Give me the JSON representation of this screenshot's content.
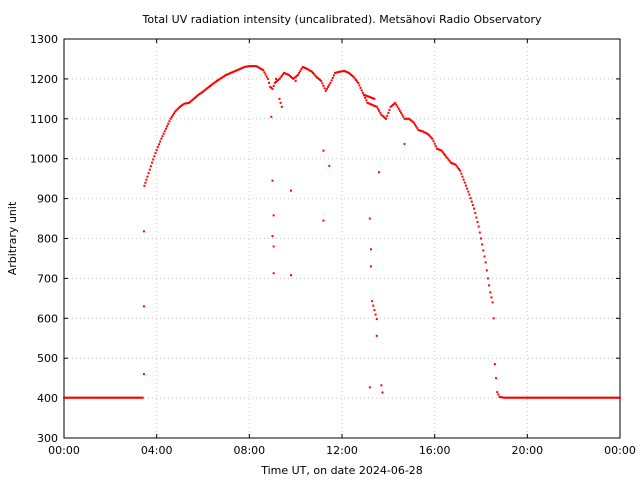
{
  "chart_data": {
    "type": "scatter",
    "title": "Total UV radiation intensity (uncalibrated). Metsähovi Radio Observatory",
    "xlabel": "Time UT, on date 2024-06-28",
    "ylabel": "Arbitrary unit",
    "xlim": [
      0,
      24
    ],
    "ylim": [
      300,
      1300
    ],
    "grid": true,
    "marker_color": "#ff0000",
    "x_ticks": [
      {
        "value": 0,
        "label": "00:00"
      },
      {
        "value": 4,
        "label": "04:00"
      },
      {
        "value": 8,
        "label": "08:00"
      },
      {
        "value": 12,
        "label": "12:00"
      },
      {
        "value": 16,
        "label": "16:00"
      },
      {
        "value": 20,
        "label": "20:00"
      },
      {
        "value": 24,
        "label": "00:00"
      }
    ],
    "y_ticks": [
      300,
      400,
      500,
      600,
      700,
      800,
      900,
      1000,
      1100,
      1200,
      1300
    ],
    "series": [
      {
        "values_note_x": "hours UT",
        "points": [
          [
            0.0,
            401
          ],
          [
            0.5,
            401
          ],
          [
            1.0,
            401
          ],
          [
            1.5,
            401
          ],
          [
            2.0,
            401
          ],
          [
            2.5,
            401
          ],
          [
            3.0,
            401
          ],
          [
            3.4,
            401
          ],
          [
            3.45,
            460
          ],
          [
            3.45,
            630
          ],
          [
            3.45,
            818
          ],
          [
            3.47,
            932
          ],
          [
            3.6,
            955
          ],
          [
            3.8,
            990
          ],
          [
            4.0,
            1022
          ],
          [
            4.2,
            1050
          ],
          [
            4.4,
            1075
          ],
          [
            4.6,
            1100
          ],
          [
            4.8,
            1118
          ],
          [
            5.0,
            1130
          ],
          [
            5.2,
            1138
          ],
          [
            5.4,
            1140
          ],
          [
            5.6,
            1150
          ],
          [
            5.8,
            1160
          ],
          [
            6.0,
            1168
          ],
          [
            6.3,
            1182
          ],
          [
            6.6,
            1195
          ],
          [
            7.0,
            1210
          ],
          [
            7.4,
            1220
          ],
          [
            7.8,
            1230
          ],
          [
            8.0,
            1232
          ],
          [
            8.3,
            1232
          ],
          [
            8.6,
            1222
          ],
          [
            8.8,
            1200
          ],
          [
            8.9,
            1180
          ],
          [
            9.0,
            1175
          ],
          [
            9.1,
            1190
          ],
          [
            9.3,
            1200
          ],
          [
            9.5,
            1215
          ],
          [
            9.7,
            1210
          ],
          [
            9.9,
            1200
          ],
          [
            10.1,
            1210
          ],
          [
            10.3,
            1230
          ],
          [
            10.5,
            1225
          ],
          [
            10.7,
            1218
          ],
          [
            10.9,
            1205
          ],
          [
            11.1,
            1195
          ],
          [
            11.3,
            1170
          ],
          [
            11.5,
            1190
          ],
          [
            11.7,
            1215
          ],
          [
            11.9,
            1218
          ],
          [
            12.1,
            1220
          ],
          [
            12.3,
            1215
          ],
          [
            12.5,
            1205
          ],
          [
            12.7,
            1190
          ],
          [
            12.9,
            1165
          ],
          [
            13.1,
            1140
          ],
          [
            13.3,
            1135
          ],
          [
            13.5,
            1130
          ],
          [
            13.7,
            1110
          ],
          [
            13.9,
            1100
          ],
          [
            14.1,
            1130
          ],
          [
            14.3,
            1140
          ],
          [
            14.5,
            1120
          ],
          [
            14.7,
            1100
          ],
          [
            14.9,
            1100
          ],
          [
            15.1,
            1090
          ],
          [
            15.3,
            1072
          ],
          [
            15.5,
            1068
          ],
          [
            15.7,
            1062
          ],
          [
            15.9,
            1050
          ],
          [
            16.1,
            1025
          ],
          [
            16.3,
            1020
          ],
          [
            16.5,
            1005
          ],
          [
            16.7,
            990
          ],
          [
            16.9,
            985
          ],
          [
            17.1,
            970
          ],
          [
            17.3,
            940
          ],
          [
            17.5,
            910
          ],
          [
            17.7,
            875
          ],
          [
            17.9,
            830
          ],
          [
            18.0,
            800
          ],
          [
            18.1,
            770
          ],
          [
            18.2,
            740
          ],
          [
            18.3,
            700
          ],
          [
            18.4,
            665
          ],
          [
            18.5,
            640
          ],
          [
            18.55,
            600
          ],
          [
            18.6,
            485
          ],
          [
            18.7,
            415
          ],
          [
            18.8,
            403
          ],
          [
            19.0,
            401
          ],
          [
            19.5,
            401
          ],
          [
            20.0,
            401
          ],
          [
            20.5,
            401
          ],
          [
            21.0,
            401
          ],
          [
            21.5,
            401
          ],
          [
            22.0,
            401
          ],
          [
            22.5,
            401
          ],
          [
            23.0,
            401
          ],
          [
            23.5,
            401
          ],
          [
            24.0,
            401
          ],
          [
            8.95,
            1105
          ],
          [
            9.0,
            945
          ],
          [
            9.05,
            858
          ],
          [
            9.0,
            806
          ],
          [
            9.05,
            780
          ],
          [
            9.05,
            713
          ],
          [
            9.3,
            1150
          ],
          [
            9.4,
            1130
          ],
          [
            9.8,
            920
          ],
          [
            9.8,
            708
          ],
          [
            11.2,
            1020
          ],
          [
            11.2,
            845
          ],
          [
            11.45,
            982
          ],
          [
            13.2,
            850
          ],
          [
            13.25,
            773
          ],
          [
            13.25,
            730
          ],
          [
            13.3,
            643
          ],
          [
            13.5,
            598
          ],
          [
            13.5,
            556
          ],
          [
            13.6,
            966
          ],
          [
            13.7,
            432
          ],
          [
            13.75,
            414
          ],
          [
            13.2,
            427
          ],
          [
            14.7,
            1037
          ],
          [
            9.15,
            1200
          ],
          [
            10.0,
            1195
          ],
          [
            12.95,
            1160
          ],
          [
            13.4,
            1150
          ]
        ]
      }
    ]
  }
}
